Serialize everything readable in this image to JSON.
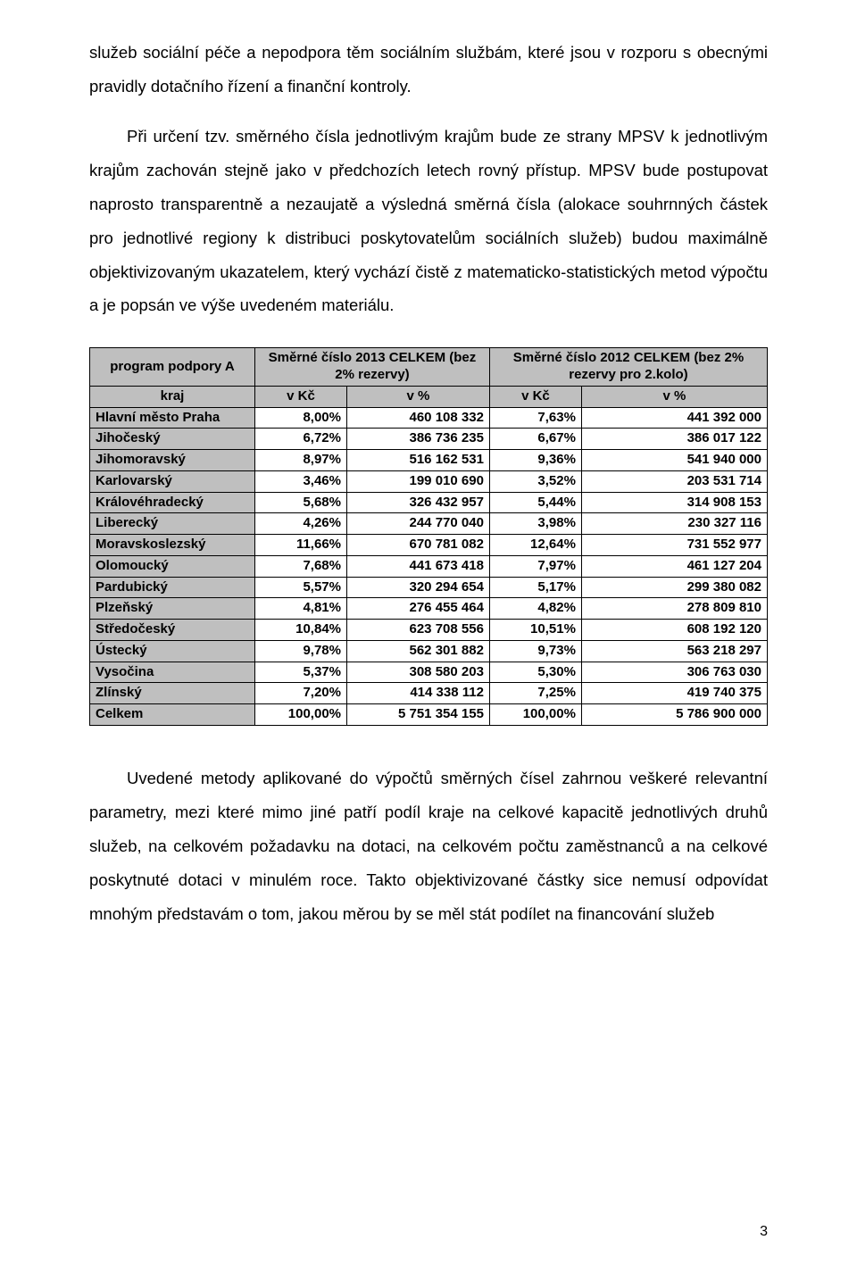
{
  "paragraphs": {
    "p1": "služeb sociální péče a nepodpora těm sociálním službám, které jsou v rozporu s obecnými pravidly dotačního řízení a finanční kontroly.",
    "p2": "Při určení tzv. směrného čísla jednotlivým krajům bude ze strany MPSV k jednotlivým krajům zachován stejně jako v předchozích letech rovný přístup. MPSV bude postupovat naprosto transparentně a nezaujatě a výsledná směrná čísla (alokace souhrnných částek pro jednotlivé regiony k distribuci poskytovatelům sociálních služeb) budou maximálně objektivizovaným ukazatelem, který vychází čistě z matematicko-statistických metod výpočtu a je popsán ve výše uvedeném materiálu.",
    "p3": "Uvedené metody aplikované do výpočtů směrných čísel zahrnou veškeré relevantní parametry, mezi které mimo jiné patří podíl kraje na celkové kapacitě jednotlivých druhů služeb, na celkovém požadavku na dotaci, na celkovém počtu zaměstnanců a na celkové poskytnuté dotaci v minulém roce. Takto objektivizované částky sice nemusí odpovídat mnohým představám o tom, jakou měrou by se měl stát podílet na financování služeb"
  },
  "table": {
    "headers": {
      "program": "program podpory A",
      "col2013": "Směrné číslo 2013 CELKEM (bez 2% rezervy)",
      "col2012": "Směrné číslo 2012 CELKEM (bez 2% rezervy pro 2.kolo)",
      "kraj": "kraj",
      "vkc": "v Kč",
      "vpct": "v %"
    },
    "rows": [
      {
        "region": "Hlavní město Praha",
        "p2013": "8,00%",
        "k2013": "460 108 332",
        "p2012": "7,63%",
        "k2012": "441 392 000"
      },
      {
        "region": "Jihočeský",
        "p2013": "6,72%",
        "k2013": "386 736 235",
        "p2012": "6,67%",
        "k2012": "386 017 122"
      },
      {
        "region": "Jihomoravský",
        "p2013": "8,97%",
        "k2013": "516 162 531",
        "p2012": "9,36%",
        "k2012": "541 940 000"
      },
      {
        "region": "Karlovarský",
        "p2013": "3,46%",
        "k2013": "199 010 690",
        "p2012": "3,52%",
        "k2012": "203 531 714"
      },
      {
        "region": "Královéhradecký",
        "p2013": "5,68%",
        "k2013": "326 432 957",
        "p2012": "5,44%",
        "k2012": "314 908 153"
      },
      {
        "region": "Liberecký",
        "p2013": "4,26%",
        "k2013": "244 770 040",
        "p2012": "3,98%",
        "k2012": "230 327 116"
      },
      {
        "region": "Moravskoslezský",
        "p2013": "11,66%",
        "k2013": "670 781 082",
        "p2012": "12,64%",
        "k2012": "731 552 977"
      },
      {
        "region": "Olomoucký",
        "p2013": "7,68%",
        "k2013": "441 673 418",
        "p2012": "7,97%",
        "k2012": "461 127 204"
      },
      {
        "region": "Pardubický",
        "p2013": "5,57%",
        "k2013": "320 294 654",
        "p2012": "5,17%",
        "k2012": "299 380 082"
      },
      {
        "region": "Plzeňský",
        "p2013": "4,81%",
        "k2013": "276 455 464",
        "p2012": "4,82%",
        "k2012": "278 809 810"
      },
      {
        "region": "Středočeský",
        "p2013": "10,84%",
        "k2013": "623 708 556",
        "p2012": "10,51%",
        "k2012": "608 192 120"
      },
      {
        "region": "Ústecký",
        "p2013": "9,78%",
        "k2013": "562 301 882",
        "p2012": "9,73%",
        "k2012": "563 218 297"
      },
      {
        "region": "Vysočina",
        "p2013": "5,37%",
        "k2013": "308 580 203",
        "p2012": "5,30%",
        "k2012": "306 763 030"
      },
      {
        "region": "Zlínský",
        "p2013": "7,20%",
        "k2013": "414 338 112",
        "p2012": "7,25%",
        "k2012": "419 740 375"
      },
      {
        "region": "Celkem",
        "p2013": "100,00%",
        "k2013": "5 751 354 155",
        "p2012": "100,00%",
        "k2012": "5 786 900 000"
      }
    ]
  },
  "page_number": "3",
  "style": {
    "header_bg": "#bfbfbf",
    "border_color": "#000000",
    "body_font_size": 18.5,
    "table_font_size": 15
  }
}
